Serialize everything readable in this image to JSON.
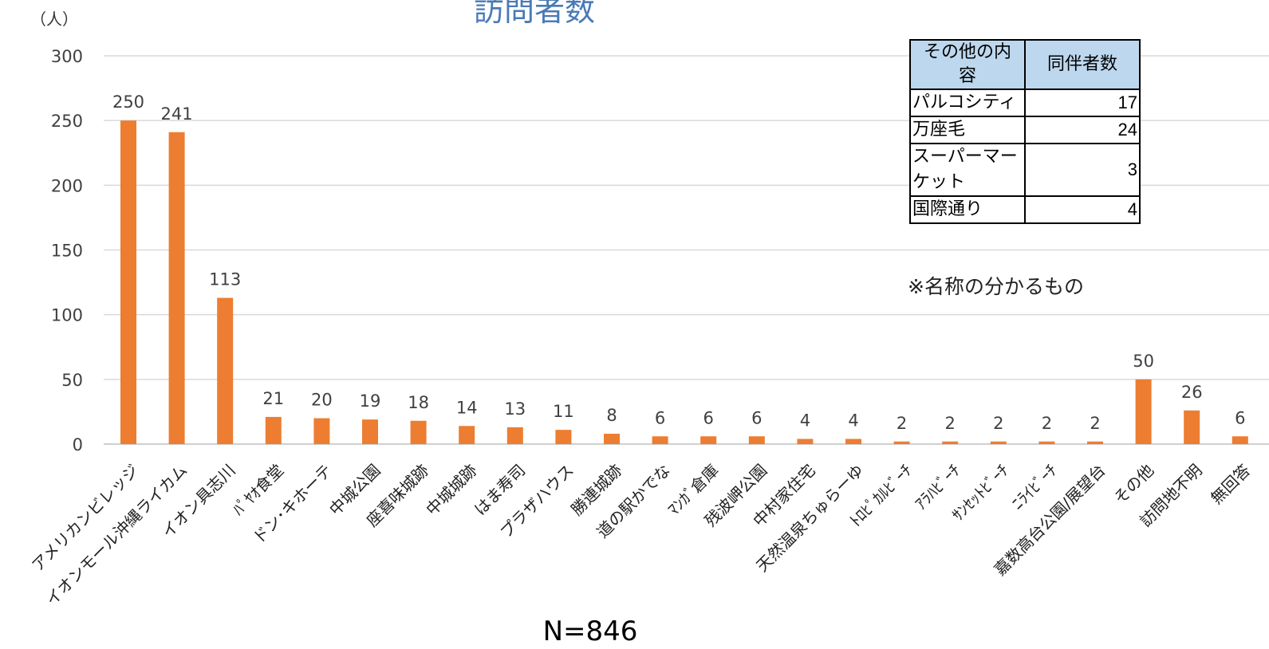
{
  "chart_data": {
    "type": "bar",
    "title": "訪問者数",
    "ylabel": "（人）",
    "xlabel": "",
    "ylim": [
      0,
      300
    ],
    "yticks": [
      0,
      50,
      100,
      150,
      200,
      250,
      300
    ],
    "grid": true,
    "bar_color": "#ed7d31",
    "categories": [
      "アメリカンビレッジ",
      "イオンモール沖縄ライカム",
      "イオン具志川",
      "ﾊﾟﾔｵ食堂",
      "ドン･キホーテ",
      "中城公園",
      "座喜味城跡",
      "中城城跡",
      "はま寿司",
      "プラザハウス",
      "勝連城跡",
      "道の駅かでな",
      "ﾏﾝｶﾞ倉庫",
      "残波岬公園",
      "中村家住宅",
      "天然温泉ちゅらーゆ",
      "ﾄﾛﾋﾟｶﾙﾋﾞｰﾁ",
      "ｱﾗﾊﾋﾞｰﾁ",
      "ｻﾝｾｯﾄﾋﾞｰﾁ",
      "ﾆﾗｲﾋﾞｰﾁ",
      "嘉数高台公園/展望台",
      "その他",
      "訪問地不明",
      "無回答"
    ],
    "values": [
      250,
      241,
      113,
      21,
      20,
      19,
      18,
      14,
      13,
      11,
      8,
      6,
      6,
      6,
      4,
      4,
      2,
      2,
      2,
      2,
      2,
      50,
      26,
      6
    ],
    "annotation": "N=846"
  },
  "side_table": {
    "headers": [
      "その他の内容",
      "同伴者数"
    ],
    "rows": [
      {
        "name": "パルコシティ",
        "count": "17"
      },
      {
        "name": "万座毛",
        "count": "24"
      },
      {
        "name": "スーパーマーケット",
        "count": "3"
      },
      {
        "name": "国際通り",
        "count": "4"
      }
    ],
    "note": "※名称の分かるもの"
  }
}
